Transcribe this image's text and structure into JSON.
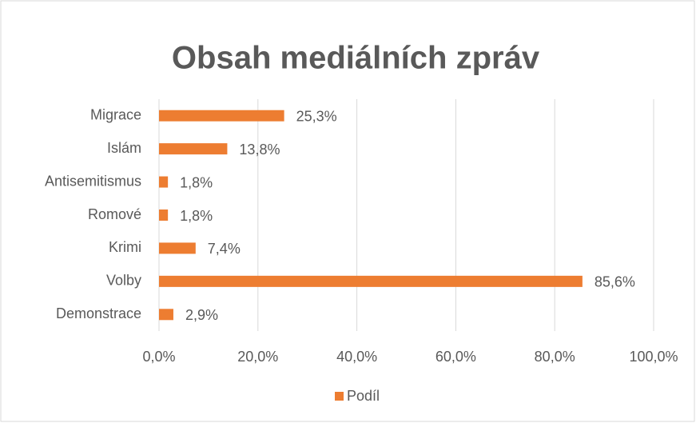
{
  "chart_data": {
    "type": "bar",
    "orientation": "horizontal",
    "title": "Obsah mediálních zpráv",
    "categories": [
      "Migrace",
      "Islám",
      "Antisemitismus",
      "Romové",
      "Krimi",
      "Volby",
      "Demonstrace"
    ],
    "series": [
      {
        "name": "Podíl",
        "color": "#ed7d31",
        "values": [
          25.3,
          13.8,
          1.8,
          1.8,
          7.4,
          85.6,
          2.9
        ],
        "value_labels": [
          "25,3%",
          "13,8%",
          "1,8%",
          "1,8%",
          "7,4%",
          "85,6%",
          "2,9%"
        ]
      }
    ],
    "xlim": [
      0,
      100
    ],
    "xticks": [
      {
        "value": 0,
        "label": "0,0%"
      },
      {
        "value": 20,
        "label": "20,0%"
      },
      {
        "value": 40,
        "label": "40,0%"
      },
      {
        "value": 60,
        "label": "60,0%"
      },
      {
        "value": 80,
        "label": "80,0%"
      },
      {
        "value": 100,
        "label": "100,0%"
      }
    ],
    "grid": true,
    "legend": "bottom"
  }
}
